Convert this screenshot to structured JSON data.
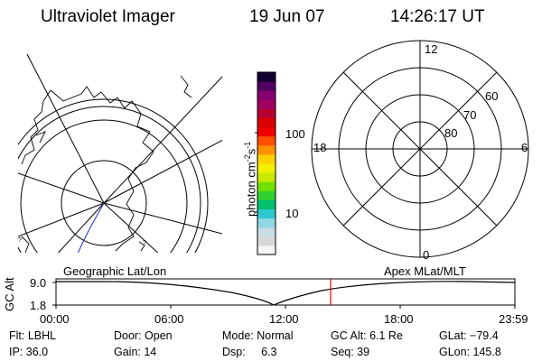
{
  "header": {
    "instrument": "Ultraviolet Imager",
    "date": "19 Jun 07",
    "time": "14:26:17 UT"
  },
  "colorbar": {
    "unit_label": "photon cm",
    "unit_exp1": "-2",
    "unit_mid": "s",
    "unit_exp2": "-1",
    "ticks": [
      "100",
      "10"
    ],
    "colors": [
      "#f5f5f5",
      "#d8d8d8",
      "#c8dce4",
      "#8fd8e2",
      "#30c8d0",
      "#00c070",
      "#30d030",
      "#70e000",
      "#c8e800",
      "#f0f000",
      "#ffd000",
      "#ff9000",
      "#ff5000",
      "#f00000",
      "#d80000",
      "#b80030",
      "#a00060",
      "#880070",
      "#500060",
      "#100030"
    ]
  },
  "left_panel": {
    "labels": [
      "?",
      "?"
    ]
  },
  "right_panel": {
    "mlt_labels": {
      "top": "12",
      "left": "18",
      "right": "6",
      "bottom": "0"
    },
    "lat_labels": [
      "60",
      "70",
      "80"
    ]
  },
  "altitude_plot": {
    "left_title": "Geographic Lat/Lon",
    "right_title": "Apex MLat/MLT",
    "axis_label": "GC Alt",
    "y_ticks": [
      "9.0",
      "1.8"
    ],
    "x_ticks": [
      "00:00",
      "06:00",
      "12:00",
      "18:00",
      "23:59"
    ],
    "current_time_color": "#e00000"
  },
  "status": {
    "row1": [
      {
        "key": "flt",
        "text": "Flt: LBHL"
      },
      {
        "key": "door",
        "text": "Door: Open"
      },
      {
        "key": "mode",
        "text": "Mode: Normal"
      },
      {
        "key": "gcalt",
        "text": "GC Alt: 6.1 Re"
      },
      {
        "key": "glat",
        "text": "GLat: −79.4"
      }
    ],
    "row2": [
      {
        "key": "ip",
        "text": "IP: 36.0"
      },
      {
        "key": "gain",
        "text": "Gain: 14"
      },
      {
        "key": "dsp",
        "text": "Dsp:     6.3"
      },
      {
        "key": "seq",
        "text": "Seq: 39"
      },
      {
        "key": "glon",
        "text": "GLon: 145.8"
      }
    ]
  }
}
